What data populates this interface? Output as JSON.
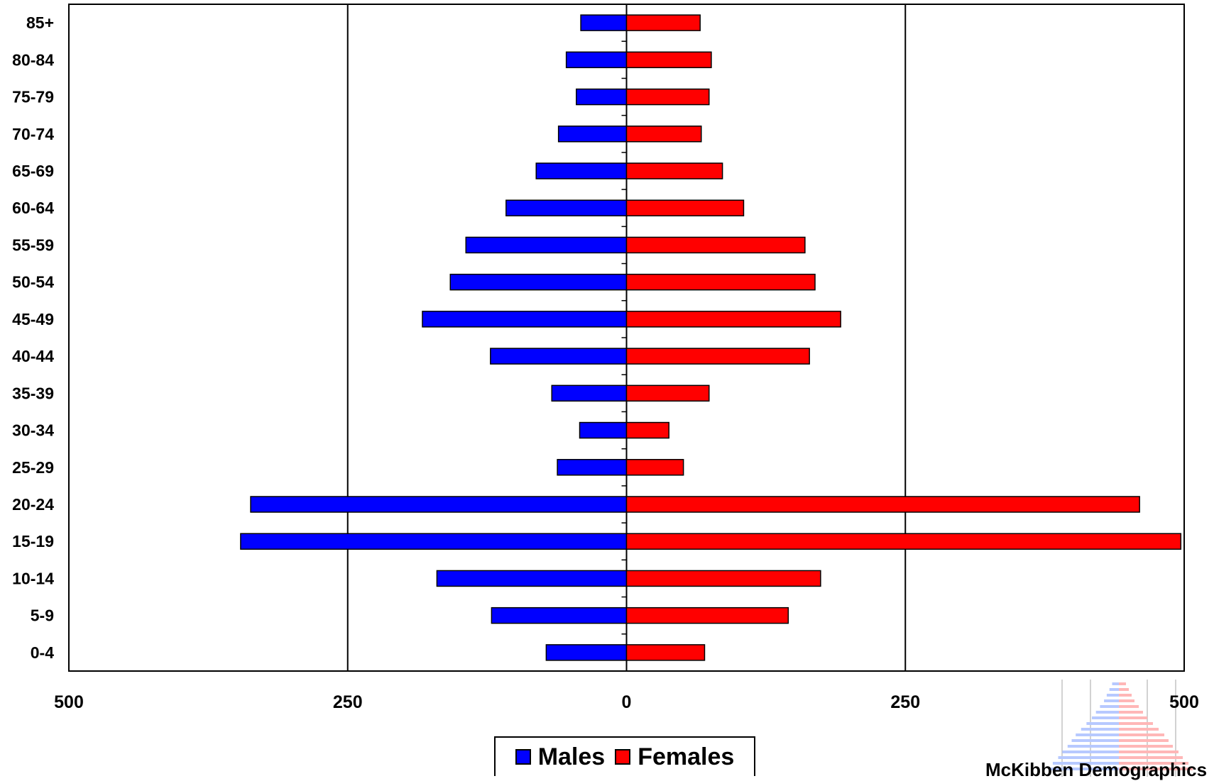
{
  "chart_data": {
    "type": "bar",
    "orientation": "horizontal",
    "layout": "population-pyramid",
    "categories": [
      "0-4",
      "5-9",
      "10-14",
      "15-19",
      "20-24",
      "25-29",
      "30-34",
      "35-39",
      "40-44",
      "45-49",
      "50-54",
      "55-59",
      "60-64",
      "65-69",
      "70-74",
      "75-79",
      "80-84",
      "85+"
    ],
    "series": [
      {
        "name": "Males",
        "color": "#0000ff",
        "values": [
          72,
          121,
          170,
          346,
          337,
          62,
          42,
          67,
          122,
          183,
          158,
          144,
          108,
          81,
          61,
          45,
          54,
          41
        ]
      },
      {
        "name": "Females",
        "color": "#ff0000",
        "values": [
          70,
          145,
          174,
          497,
          460,
          51,
          38,
          74,
          164,
          192,
          169,
          160,
          105,
          86,
          67,
          74,
          76,
          66
        ]
      }
    ],
    "xlim": [
      -500,
      500
    ],
    "x_ticks": [
      -500,
      -250,
      0,
      250,
      500
    ],
    "x_tick_labels": [
      "500",
      "250",
      "0",
      "250",
      "500"
    ],
    "gridlines": "vertical at each x tick",
    "legend_position": "bottom-center"
  },
  "legend": {
    "males_label": "Males",
    "females_label": "Females"
  },
  "watermark": {
    "text": "McKibben Demographics"
  }
}
